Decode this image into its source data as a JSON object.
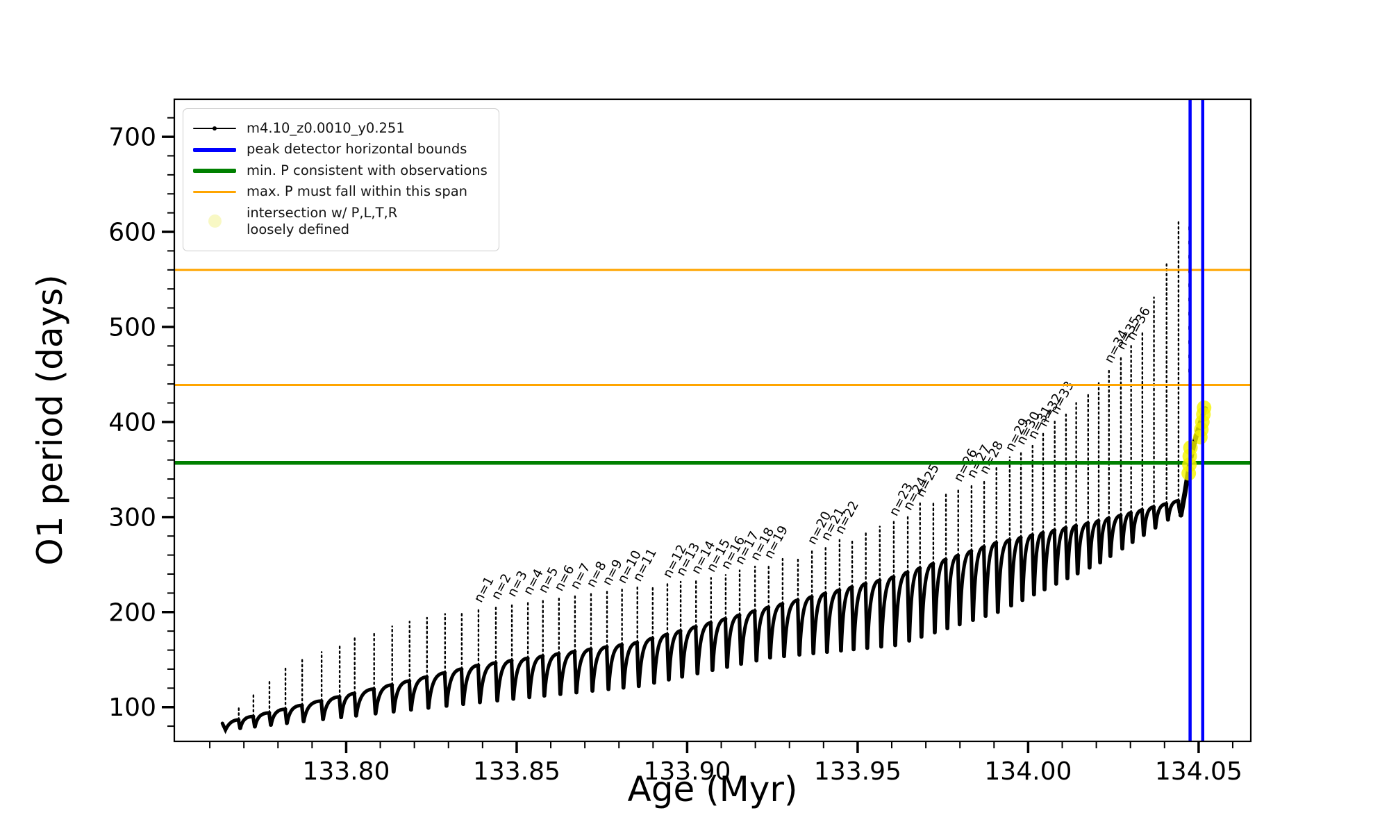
{
  "figure": {
    "background": "#ffffff",
    "accent_colors": {
      "data": "#000000",
      "peak_bounds": "#0000ff",
      "min_p": "#008000",
      "max_p_span": "#ffa500",
      "intersection": "#f4f400",
      "intersection_legend_swatch": "#f8f8c4"
    }
  },
  "legend": {
    "items": [
      {
        "label": "m4.10_z0.0010_y0.251",
        "marker": "line-with-dot",
        "color": "#000000"
      },
      {
        "label": "peak detector horizontal bounds",
        "marker": "thick-line",
        "color": "#0000ff"
      },
      {
        "label": "min. P consistent with observations",
        "marker": "thick-line",
        "color": "#008000"
      },
      {
        "label": "max. P must fall within this span",
        "marker": "thin-line",
        "color": "#ffa500"
      },
      {
        "label": "intersection w/ P,L,T,R\nloosely defined",
        "marker": "pale-dot",
        "color": "#f8f8c4"
      }
    ]
  },
  "chart_data": {
    "type": "line",
    "title": "",
    "xlabel": "Age (Myr)",
    "ylabel": "O1 period (days)",
    "xlim": [
      133.7496,
      134.0653
    ],
    "ylim": [
      64,
      739.5
    ],
    "grid": false,
    "x_ticks": {
      "major": [
        {
          "v": 133.8,
          "label": "133.80"
        },
        {
          "v": 133.85,
          "label": "133.85"
        },
        {
          "v": 133.9,
          "label": "133.90"
        },
        {
          "v": 133.95,
          "label": "133.95"
        },
        {
          "v": 134.0,
          "label": "134.00"
        },
        {
          "v": 134.05,
          "label": "134.05"
        }
      ],
      "minor_step": 0.01
    },
    "y_ticks": {
      "major": [
        {
          "v": 100,
          "label": "100"
        },
        {
          "v": 200,
          "label": "200"
        },
        {
          "v": 300,
          "label": "300"
        },
        {
          "v": 400,
          "label": "400"
        },
        {
          "v": 500,
          "label": "500"
        },
        {
          "v": 600,
          "label": "600"
        },
        {
          "v": 700,
          "label": "700"
        }
      ],
      "minor_step": 20
    },
    "annotation_prefix": "n=",
    "series": [
      {
        "name": "m4.10_z0.0010_y0.251",
        "color": "#000000",
        "comment": "thermal-pulse spikes: [age_Myr, peak_period_days, pulse_label_or_null]",
        "pulses": [
          [
            133.7685,
            101,
            null
          ],
          [
            133.7728,
            114,
            null
          ],
          [
            133.7775,
            127,
            null
          ],
          [
            133.7822,
            141,
            null
          ],
          [
            133.7871,
            150,
            null
          ],
          [
            133.7928,
            158,
            null
          ],
          [
            133.7981,
            166,
            null
          ],
          [
            133.8025,
            173,
            null
          ],
          [
            133.8082,
            179,
            null
          ],
          [
            133.8135,
            185,
            null
          ],
          [
            133.8186,
            190,
            null
          ],
          [
            133.8237,
            194,
            null
          ],
          [
            133.829,
            198,
            null
          ],
          [
            133.8339,
            201,
            null
          ],
          [
            133.8388,
            204,
            1
          ],
          [
            133.8439,
            207,
            2
          ],
          [
            133.8486,
            210,
            3
          ],
          [
            133.8533,
            212,
            4
          ],
          [
            133.8577,
            214,
            5
          ],
          [
            133.8624,
            216,
            6
          ],
          [
            133.8671,
            218,
            7
          ],
          [
            133.8718,
            220,
            8
          ],
          [
            133.8765,
            222,
            9
          ],
          [
            133.8809,
            224,
            10
          ],
          [
            133.8854,
            226,
            11
          ],
          [
            133.8899,
            228,
            null
          ],
          [
            133.8942,
            230,
            12
          ],
          [
            133.8981,
            232,
            13
          ],
          [
            133.9026,
            234,
            14
          ],
          [
            133.907,
            236,
            15
          ],
          [
            133.9113,
            239,
            16
          ],
          [
            133.9154,
            244,
            17
          ],
          [
            133.9199,
            248,
            18
          ],
          [
            133.9239,
            250,
            19
          ],
          [
            133.928,
            256,
            null
          ],
          [
            133.9325,
            258,
            null
          ],
          [
            133.9366,
            265,
            20
          ],
          [
            133.9406,
            269,
            21
          ],
          [
            133.9447,
            276,
            22
          ],
          [
            133.9484,
            277,
            null
          ],
          [
            133.9524,
            284,
            null
          ],
          [
            133.9565,
            290,
            null
          ],
          [
            133.9606,
            295,
            23
          ],
          [
            133.9647,
            301,
            24
          ],
          [
            133.9683,
            315,
            25
          ],
          [
            133.9722,
            317,
            null
          ],
          [
            133.9759,
            325,
            null
          ],
          [
            133.9795,
            331,
            26
          ],
          [
            133.9834,
            335,
            27
          ],
          [
            133.9871,
            339,
            28
          ],
          [
            133.9907,
            353,
            null
          ],
          [
            133.9946,
            363,
            29
          ],
          [
            133.9979,
            370,
            30
          ],
          [
            134.0013,
            376,
            31
          ],
          [
            134.0044,
            389,
            32
          ],
          [
            134.0078,
            402,
            33
          ],
          [
            134.0111,
            408,
            null
          ],
          [
            134.0141,
            420,
            null
          ],
          [
            134.0176,
            431,
            null
          ],
          [
            134.0207,
            444,
            null
          ],
          [
            134.0237,
            456,
            34
          ],
          [
            134.0272,
            470,
            35
          ],
          [
            134.0302,
            480,
            36
          ],
          [
            134.0335,
            495,
            null
          ],
          [
            134.0369,
            531,
            null
          ],
          [
            134.0406,
            566,
            null
          ],
          [
            134.0441,
            612,
            null
          ]
        ],
        "baseline": {
          "start": [
            133.7637,
            83
          ],
          "start_dip": [
            133.7646,
            76
          ],
          "shoulder_anchors": [
            [
              133.764,
              83
            ],
            [
              133.8388,
              144
            ],
            [
              133.8854,
              168
            ],
            [
              133.9239,
              205
            ],
            [
              133.9606,
              237
            ],
            [
              133.9907,
              273
            ],
            [
              134.0207,
              296
            ],
            [
              134.0441,
              317
            ]
          ],
          "dip_anchors": [
            [
              133.764,
              76
            ],
            [
              133.8388,
              105
            ],
            [
              133.8854,
              122
            ],
            [
              133.9239,
              152
            ],
            [
              133.9606,
              165
            ],
            [
              133.9907,
              200
            ],
            [
              134.0207,
              252
            ],
            [
              134.0441,
              305
            ]
          ]
        },
        "final_rise": [
          [
            134.0448,
            302
          ],
          [
            134.046,
            326
          ],
          [
            134.0473,
            355
          ],
          [
            134.0488,
            379
          ],
          [
            134.0502,
            396
          ],
          [
            134.0512,
            407
          ],
          [
            134.052,
            414
          ]
        ],
        "sparse_tail": {
          "x": 134.0473,
          "v_from": 445,
          "v_to": 605
        }
      }
    ],
    "hlines": [
      {
        "y": 560,
        "color": "#ffa500",
        "width": 3,
        "meaning": "max. P must fall within this span (upper)"
      },
      {
        "y": 439,
        "color": "#ffa500",
        "width": 3,
        "meaning": "max. P must fall within this span (lower)"
      },
      {
        "y": 357,
        "color": "#008000",
        "width": 5.5,
        "meaning": "min. P consistent with observations"
      }
    ],
    "vlines": [
      {
        "x": 134.0475,
        "color": "#0000ff",
        "width": 4.5,
        "meaning": "peak detector horizontal bound (left)"
      },
      {
        "x": 134.0512,
        "color": "#0000ff",
        "width": 4.5,
        "meaning": "peak detector horizontal bound (right)"
      }
    ],
    "yellow_points": [
      [
        134.0471,
        346
      ],
      [
        134.0473,
        355
      ],
      [
        134.0474,
        364
      ],
      [
        134.0476,
        373
      ],
      [
        134.0505,
        384
      ],
      [
        134.0508,
        392
      ],
      [
        134.0511,
        400
      ],
      [
        134.0514,
        408
      ],
      [
        134.0516,
        415
      ]
    ]
  }
}
